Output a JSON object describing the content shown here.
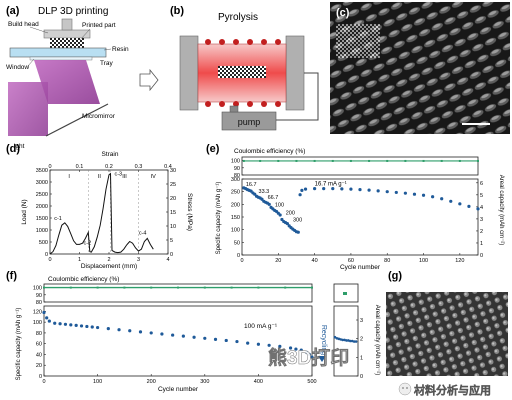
{
  "panels": {
    "a": {
      "label": "(a)",
      "title": "DLP 3D printing",
      "callouts": {
        "build_head": "Build head",
        "printed_part": "Printed part",
        "window": "Window",
        "resin": "Resin",
        "tray": "Tray",
        "micromirror": "Micromirror",
        "light": "ight"
      }
    },
    "b": {
      "label": "(b)",
      "title": "Pyrolysis",
      "pump": "pump"
    },
    "c": {
      "label": "(c)"
    },
    "d": {
      "label": "(d)",
      "top_axis_label": "Strain",
      "xlabel": "Displacement (mm)",
      "ylabel_left": "Load (N)",
      "ylabel_right": "Stress (MPa)",
      "regions": [
        "I",
        "II",
        "III",
        "IV"
      ],
      "points": [
        "c-1",
        "c-2",
        "c-3",
        "c-4"
      ],
      "x_ticks": [
        "0",
        "1",
        "2",
        "3",
        "4"
      ],
      "top_ticks": [
        "0",
        "0.1",
        "0.2",
        "0.3",
        "0.4"
      ],
      "y_ticks_left": [
        "0",
        "500",
        "1000",
        "1500",
        "2000",
        "2500",
        "3000",
        "3500"
      ],
      "y_ticks_right": [
        "0",
        "5",
        "10",
        "15",
        "20",
        "25",
        "30"
      ]
    },
    "e": {
      "label": "(e)",
      "ce_title": "Coulombic efficiency (%)",
      "ce_ticks": [
        "80",
        "90",
        "100"
      ],
      "xlabel": "Cycle number",
      "ylabel_left": "Specific capacity (mAh g⁻¹)",
      "ylabel_right": "Areal capacity (mAh cm⁻²)",
      "x_ticks": [
        "0",
        "20",
        "40",
        "60",
        "80",
        "100",
        "120"
      ],
      "y_ticks_left": [
        "0",
        "50",
        "100",
        "150",
        "200",
        "250",
        "300"
      ],
      "y_ticks_right": [
        "0",
        "1",
        "2",
        "3",
        "4",
        "5",
        "6"
      ],
      "rate_labels": [
        "16.7",
        "33.3",
        "66.7",
        "100",
        "200",
        "300"
      ],
      "rate_label_final": "16.7 mA g⁻¹"
    },
    "f": {
      "label": "(f)",
      "ce_title": "Coulombic efficiency (%)",
      "ce_ticks": [
        "80",
        "90",
        "100"
      ],
      "xlabel": "Cycle number",
      "ylabel_left": "Specific capacity (mAh g⁻¹)",
      "ylabel_right": "Areal capacity (mAh cm⁻²)",
      "x_ticks": [
        "0",
        "100",
        "200",
        "300",
        "400",
        "500"
      ],
      "y_ticks_left": [
        "0",
        "20",
        "40",
        "60",
        "80",
        "100",
        "120"
      ],
      "y_ticks_right": [
        "0",
        "1",
        "2",
        "3"
      ],
      "rate_label": "100 mA g⁻¹",
      "recycling": "Recycling"
    },
    "g": {
      "label": "(g)"
    }
  },
  "watermarks": {
    "center": "熊3D打印",
    "corner": "材料分析与应用"
  },
  "chart_data": [
    {
      "type": "line",
      "panel": "d",
      "xlabel": "Displacement (mm)",
      "ylabel": "Load (N)",
      "xlim": [
        0,
        4
      ],
      "ylim": [
        0,
        3500
      ],
      "series": [
        {
          "x": [
            0,
            0.1,
            0.2,
            0.3,
            0.4,
            0.5,
            0.6,
            0.7,
            0.8,
            0.9,
            1.0,
            1.1,
            1.2,
            1.3,
            1.35,
            1.4,
            1.5,
            1.6,
            1.7,
            1.8,
            1.9,
            2.0,
            2.05,
            2.1,
            2.2,
            2.3,
            2.4,
            2.5,
            2.6,
            2.7,
            2.8,
            2.9,
            3.0,
            3.1,
            3.2,
            3.3,
            3.4,
            3.5
          ],
          "y": [
            0,
            100,
            350,
            800,
            1200,
            1300,
            1150,
            850,
            550,
            400,
            400,
            450,
            650,
            900,
            100,
            80,
            300,
            700,
            1200,
            1900,
            2700,
            3300,
            3350,
            150,
            80,
            60,
            80,
            200,
            380,
            520,
            450,
            250,
            120,
            200,
            520,
            650,
            400,
            200
          ]
        }
      ]
    },
    {
      "type": "scatter",
      "panel": "e",
      "title": "Coulombic efficiency (%)",
      "xlim": [
        0,
        130
      ],
      "ylim": [
        80,
        105
      ],
      "series": [
        {
          "x": [
            1,
            10,
            20,
            30,
            40,
            50,
            60,
            70,
            80,
            90,
            100,
            110,
            120,
            130
          ],
          "y": [
            99.5,
            99.5,
            99.5,
            99.5,
            99.5,
            99.5,
            99.5,
            99.5,
            99.5,
            99.5,
            99.5,
            99.5,
            99.5,
            99.5
          ]
        }
      ]
    },
    {
      "type": "scatter",
      "panel": "e",
      "xlabel": "Cycle number",
      "ylabel": "Specific capacity (mAh g⁻¹)",
      "xlim": [
        0,
        130
      ],
      "ylim": [
        0,
        300
      ],
      "series": [
        {
          "x": [
            1,
            2,
            3,
            4,
            5,
            6,
            7,
            8,
            9,
            10,
            11,
            12,
            13,
            14,
            15,
            16,
            17,
            18,
            19,
            20,
            21,
            22,
            23,
            24,
            25,
            26,
            27,
            28,
            29,
            30,
            31,
            32,
            33,
            35,
            40,
            45,
            50,
            55,
            60,
            65,
            70,
            75,
            80,
            85,
            90,
            95,
            100,
            105,
            110,
            115,
            120,
            125,
            130
          ],
          "y": [
            265,
            262,
            258,
            255,
            252,
            245,
            240,
            232,
            228,
            225,
            220,
            212,
            208,
            205,
            200,
            188,
            182,
            176,
            172,
            165,
            158,
            140,
            132,
            128,
            124,
            115,
            108,
            102,
            97,
            92,
            90,
            238,
            255,
            260,
            262,
            262,
            262,
            261,
            260,
            258,
            256,
            253,
            250,
            247,
            244,
            240,
            236,
            230,
            222,
            212,
            202,
            192,
            182
          ]
        }
      ]
    },
    {
      "type": "scatter",
      "panel": "f",
      "title": "Coulombic efficiency (%)",
      "xlim": [
        0,
        500
      ],
      "ylim": [
        80,
        105
      ],
      "series": [
        {
          "x": [
            0,
            50,
            100,
            150,
            200,
            250,
            300,
            350,
            400,
            450,
            500
          ],
          "y": [
            100,
            100,
            100,
            100,
            100,
            100,
            100,
            100,
            100,
            100,
            100
          ]
        }
      ]
    },
    {
      "type": "scatter",
      "panel": "f",
      "xlabel": "Cycle number",
      "ylabel": "Specific capacity (mAh g⁻¹)",
      "xlim": [
        0,
        500
      ],
      "ylim": [
        0,
        130
      ],
      "series": [
        {
          "x": [
            0,
            5,
            10,
            20,
            30,
            40,
            50,
            60,
            70,
            80,
            90,
            100,
            120,
            140,
            160,
            180,
            200,
            220,
            240,
            260,
            280,
            300,
            320,
            340,
            360,
            380,
            400,
            420,
            440,
            460,
            470,
            480,
            490,
            495,
            500
          ],
          "y": [
            118,
            108,
            102,
            98,
            97,
            96,
            95,
            94,
            93,
            92,
            91,
            90,
            88,
            86,
            84,
            82,
            80,
            78,
            76,
            74,
            72,
            70,
            68,
            66,
            64,
            61,
            59,
            57,
            55,
            52,
            50,
            48,
            44,
            40,
            35
          ]
        }
      ]
    },
    {
      "type": "scatter",
      "panel": "f-recycling",
      "xlim": [
        0,
        50
      ],
      "ylim": [
        0,
        130
      ],
      "series": [
        {
          "x": [
            2,
            6,
            10,
            14,
            18,
            22,
            26,
            30,
            34,
            38,
            42,
            46
          ],
          "y": [
            72,
            70,
            69,
            68,
            67,
            67,
            66,
            66,
            65,
            65,
            64,
            64
          ]
        }
      ]
    }
  ]
}
